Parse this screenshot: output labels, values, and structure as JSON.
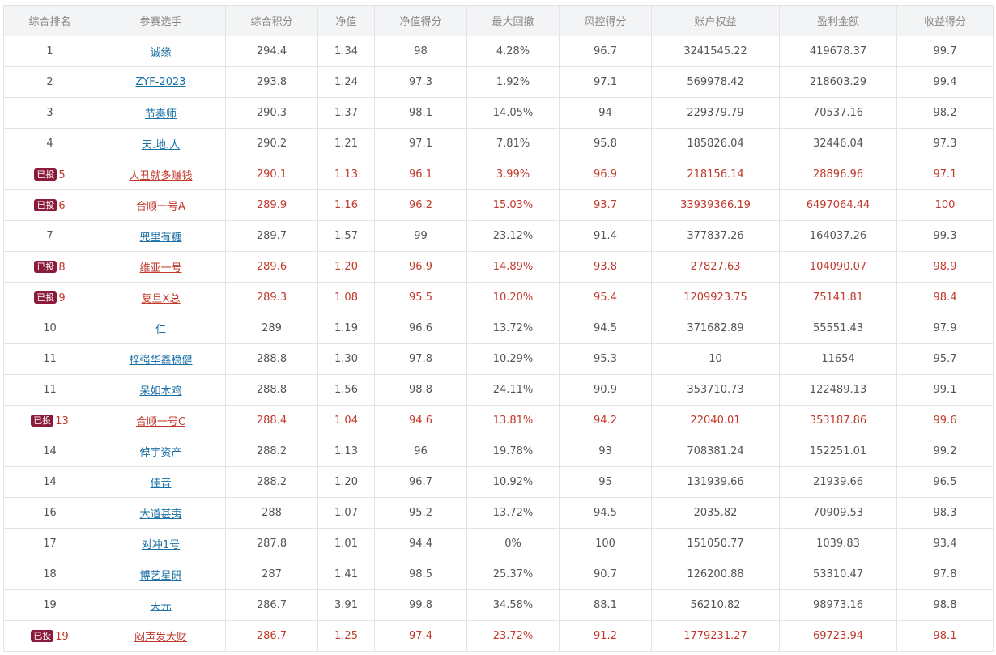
{
  "columns": [
    "综合排名",
    "参赛选手",
    "综合积分",
    "净值",
    "净值得分",
    "最大回撤",
    "风控得分",
    "账户权益",
    "盈利金额",
    "收益得分"
  ],
  "badge_label": "已投",
  "rows": [
    {
      "rank": "1",
      "name": "诚缘",
      "score": "294.4",
      "nav": "1.34",
      "nav_score": "98",
      "drawdown": "4.28%",
      "risk_score": "96.7",
      "equity": "3241545.22",
      "profit": "419678.37",
      "return_score": "99.7",
      "invested": false
    },
    {
      "rank": "2",
      "name": "ZYF-2023",
      "score": "293.8",
      "nav": "1.24",
      "nav_score": "97.3",
      "drawdown": "1.92%",
      "risk_score": "97.1",
      "equity": "569978.42",
      "profit": "218603.29",
      "return_score": "99.4",
      "invested": false
    },
    {
      "rank": "3",
      "name": "节奏师",
      "score": "290.3",
      "nav": "1.37",
      "nav_score": "98.1",
      "drawdown": "14.05%",
      "risk_score": "94",
      "equity": "229379.79",
      "profit": "70537.16",
      "return_score": "98.2",
      "invested": false
    },
    {
      "rank": "4",
      "name": "天.地.人",
      "score": "290.2",
      "nav": "1.21",
      "nav_score": "97.1",
      "drawdown": "7.81%",
      "risk_score": "95.8",
      "equity": "185826.04",
      "profit": "32446.04",
      "return_score": "97.3",
      "invested": false
    },
    {
      "rank": "5",
      "name": "人丑就多赚钱",
      "score": "290.1",
      "nav": "1.13",
      "nav_score": "96.1",
      "drawdown": "3.99%",
      "risk_score": "96.9",
      "equity": "218156.14",
      "profit": "28896.96",
      "return_score": "97.1",
      "invested": true
    },
    {
      "rank": "6",
      "name": "合顺一号A",
      "score": "289.9",
      "nav": "1.16",
      "nav_score": "96.2",
      "drawdown": "15.03%",
      "risk_score": "93.7",
      "equity": "33939366.19",
      "profit": "6497064.44",
      "return_score": "100",
      "invested": true
    },
    {
      "rank": "7",
      "name": "兜里有糖",
      "score": "289.7",
      "nav": "1.57",
      "nav_score": "99",
      "drawdown": "23.12%",
      "risk_score": "91.4",
      "equity": "377837.26",
      "profit": "164037.26",
      "return_score": "99.3",
      "invested": false
    },
    {
      "rank": "8",
      "name": "维亚一号",
      "score": "289.6",
      "nav": "1.20",
      "nav_score": "96.9",
      "drawdown": "14.89%",
      "risk_score": "93.8",
      "equity": "27827.63",
      "profit": "104090.07",
      "return_score": "98.9",
      "invested": true
    },
    {
      "rank": "9",
      "name": "复旦X总",
      "score": "289.3",
      "nav": "1.08",
      "nav_score": "95.5",
      "drawdown": "10.20%",
      "risk_score": "95.4",
      "equity": "1209923.75",
      "profit": "75141.81",
      "return_score": "98.4",
      "invested": true
    },
    {
      "rank": "10",
      "name": "仁",
      "score": "289",
      "nav": "1.19",
      "nav_score": "96.6",
      "drawdown": "13.72%",
      "risk_score": "94.5",
      "equity": "371682.89",
      "profit": "55551.43",
      "return_score": "97.9",
      "invested": false
    },
    {
      "rank": "11",
      "name": "梓强华鑫稳健",
      "score": "288.8",
      "nav": "1.30",
      "nav_score": "97.8",
      "drawdown": "10.29%",
      "risk_score": "95.3",
      "equity": "10",
      "profit": "11654",
      "return_score": "95.7",
      "invested": false
    },
    {
      "rank": "11",
      "name": "呆如木鸡",
      "score": "288.8",
      "nav": "1.56",
      "nav_score": "98.8",
      "drawdown": "24.11%",
      "risk_score": "90.9",
      "equity": "353710.73",
      "profit": "122489.13",
      "return_score": "99.1",
      "invested": false
    },
    {
      "rank": "13",
      "name": "合顺一号C",
      "score": "288.4",
      "nav": "1.04",
      "nav_score": "94.6",
      "drawdown": "13.81%",
      "risk_score": "94.2",
      "equity": "22040.01",
      "profit": "353187.86",
      "return_score": "99.6",
      "invested": true
    },
    {
      "rank": "14",
      "name": "倬宇资产",
      "score": "288.2",
      "nav": "1.13",
      "nav_score": "96",
      "drawdown": "19.78%",
      "risk_score": "93",
      "equity": "708381.24",
      "profit": "152251.01",
      "return_score": "99.2",
      "invested": false
    },
    {
      "rank": "14",
      "name": "佳音",
      "score": "288.2",
      "nav": "1.20",
      "nav_score": "96.7",
      "drawdown": "10.92%",
      "risk_score": "95",
      "equity": "131939.66",
      "profit": "21939.66",
      "return_score": "96.5",
      "invested": false
    },
    {
      "rank": "16",
      "name": "大道甚夷",
      "score": "288",
      "nav": "1.07",
      "nav_score": "95.2",
      "drawdown": "13.72%",
      "risk_score": "94.5",
      "equity": "2035.82",
      "profit": "70909.53",
      "return_score": "98.3",
      "invested": false
    },
    {
      "rank": "17",
      "name": "对冲1号",
      "score": "287.8",
      "nav": "1.01",
      "nav_score": "94.4",
      "drawdown": "0%",
      "risk_score": "100",
      "equity": "151050.77",
      "profit": "1039.83",
      "return_score": "93.4",
      "invested": false
    },
    {
      "rank": "18",
      "name": "博艺星研",
      "score": "287",
      "nav": "1.41",
      "nav_score": "98.5",
      "drawdown": "25.37%",
      "risk_score": "90.7",
      "equity": "126200.88",
      "profit": "53310.47",
      "return_score": "97.8",
      "invested": false
    },
    {
      "rank": "19",
      "name": "天元",
      "score": "286.7",
      "nav": "3.91",
      "nav_score": "99.8",
      "drawdown": "34.58%",
      "risk_score": "88.1",
      "equity": "56210.82",
      "profit": "98973.16",
      "return_score": "98.8",
      "invested": false
    },
    {
      "rank": "19",
      "name": "闷声发大财",
      "score": "286.7",
      "nav": "1.25",
      "nav_score": "97.4",
      "drawdown": "23.72%",
      "risk_score": "91.2",
      "equity": "1779231.27",
      "profit": "69723.94",
      "return_score": "98.1",
      "invested": true
    }
  ]
}
